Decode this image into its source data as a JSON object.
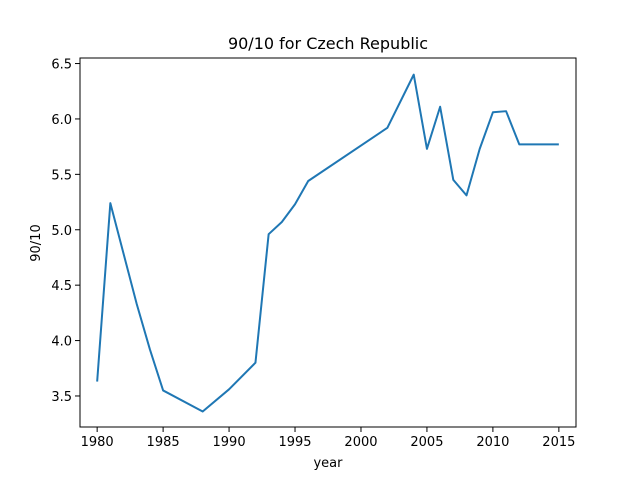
{
  "chart_data": {
    "type": "line",
    "title": "90/10 for Czech Republic",
    "xlabel": "year",
    "ylabel": "90/10",
    "xlim": [
      1978.7,
      2016.3
    ],
    "ylim": [
      3.22,
      6.55
    ],
    "x_ticks": [
      1980,
      1985,
      1990,
      1995,
      2000,
      2005,
      2010,
      2015
    ],
    "y_ticks": [
      "3.5",
      "4.0",
      "4.5",
      "5.0",
      "5.5",
      "6.0",
      "6.5"
    ],
    "grid": false,
    "line_color": "#1f77b4",
    "series": [
      {
        "x": [
          1980,
          1981,
          1983,
          1984,
          1985,
          1988,
          1990,
          1992,
          1993,
          1994,
          1995,
          1996,
          2002,
          2004,
          2005,
          2006,
          2007,
          2008,
          2009,
          2010,
          2011,
          2012,
          2013,
          2015
        ],
        "y": [
          3.63,
          5.24,
          4.33,
          3.92,
          3.55,
          3.36,
          3.56,
          3.8,
          4.96,
          5.07,
          5.23,
          5.44,
          5.92,
          6.4,
          5.73,
          6.11,
          5.45,
          5.31,
          5.73,
          6.06,
          6.07,
          5.77,
          5.77,
          5.77
        ]
      }
    ]
  }
}
